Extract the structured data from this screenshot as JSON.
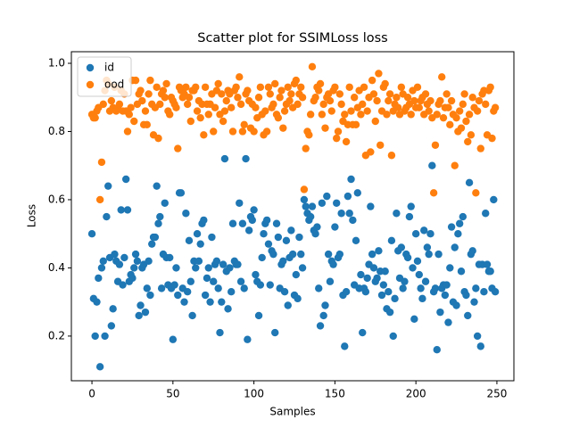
{
  "chart_data": {
    "type": "scatter",
    "title": "Scatter plot for SSIMLoss loss",
    "x_label": "Samples",
    "y_label": "Loss",
    "x": [
      0,
      1,
      2,
      3,
      4,
      5,
      6,
      7,
      8,
      9,
      10,
      11,
      12,
      13,
      14,
      15,
      16,
      17,
      18,
      19,
      20,
      21,
      22,
      23,
      24,
      25,
      26,
      27,
      28,
      29,
      30,
      31,
      32,
      33,
      34,
      35,
      36,
      37,
      38,
      39,
      40,
      41,
      42,
      43,
      44,
      45,
      46,
      47,
      48,
      49,
      50,
      51,
      52,
      53,
      54,
      55,
      56,
      57,
      58,
      59,
      60,
      61,
      62,
      63,
      64,
      65,
      66,
      67,
      68,
      69,
      70,
      71,
      72,
      73,
      74,
      75,
      76,
      77,
      78,
      79,
      80,
      81,
      82,
      83,
      84,
      85,
      86,
      87,
      88,
      89,
      90,
      91,
      92,
      93,
      94,
      95,
      96,
      97,
      98,
      99,
      100,
      101,
      102,
      103,
      104,
      105,
      106,
      107,
      108,
      109,
      110,
      111,
      112,
      113,
      114,
      115,
      116,
      117,
      118,
      119,
      120,
      121,
      122,
      123,
      124,
      125,
      126,
      127,
      128,
      129,
      130,
      131,
      132,
      133,
      134,
      135,
      136,
      137,
      138,
      139,
      140,
      141,
      142,
      143,
      144,
      145,
      146,
      147,
      148,
      149,
      150,
      151,
      152,
      153,
      154,
      155,
      156,
      157,
      158,
      159,
      160,
      161,
      162,
      163,
      164,
      165,
      166,
      167,
      168,
      169,
      170,
      171,
      172,
      173,
      174,
      175,
      176,
      177,
      178,
      179,
      180,
      181,
      182,
      183,
      184,
      185,
      186,
      187,
      188,
      189,
      190,
      191,
      192,
      193,
      194,
      195,
      196,
      197,
      198,
      199,
      200,
      201,
      202,
      203,
      204,
      205,
      206,
      207,
      208,
      209,
      210,
      211,
      212,
      213,
      214,
      215,
      216,
      217,
      218,
      219,
      220,
      221,
      222,
      223,
      224,
      225,
      226,
      227,
      228,
      229,
      230,
      231,
      232,
      233,
      234,
      235,
      236,
      237,
      238,
      239,
      240,
      241,
      242,
      243,
      244,
      245,
      246,
      247,
      248,
      249
    ],
    "series": [
      {
        "name": "id",
        "color": "#1f77b4",
        "values": [
          0.5,
          0.31,
          0.2,
          0.3,
          0.37,
          0.11,
          0.4,
          0.42,
          0.2,
          0.55,
          0.64,
          0.43,
          0.23,
          0.28,
          0.44,
          0.42,
          0.36,
          0.41,
          0.57,
          0.35,
          0.43,
          0.66,
          0.57,
          0.36,
          0.38,
          0.37,
          0.4,
          0.44,
          0.42,
          0.26,
          0.29,
          0.4,
          0.41,
          0.27,
          0.34,
          0.42,
          0.32,
          0.47,
          0.49,
          0.49,
          0.64,
          0.53,
          0.55,
          0.34,
          0.44,
          0.59,
          0.43,
          0.35,
          0.43,
          0.34,
          0.19,
          0.35,
          0.4,
          0.32,
          0.62,
          0.62,
          0.34,
          0.3,
          0.56,
          0.33,
          0.48,
          0.36,
          0.26,
          0.42,
          0.4,
          0.5,
          0.42,
          0.47,
          0.53,
          0.54,
          0.32,
          0.37,
          0.4,
          0.3,
          0.49,
          0.36,
          0.41,
          0.42,
          0.34,
          0.21,
          0.3,
          0.41,
          0.72,
          0.39,
          0.28,
          0.4,
          0.33,
          0.53,
          0.42,
          0.41,
          0.41,
          0.59,
          0.36,
          0.53,
          0.34,
          0.72,
          0.19,
          0.51,
          0.55,
          0.54,
          0.57,
          0.38,
          0.36,
          0.26,
          0.35,
          0.43,
          0.5,
          0.53,
          0.54,
          0.47,
          0.35,
          0.45,
          0.44,
          0.21,
          0.53,
          0.49,
          0.34,
          0.41,
          0.42,
          0.33,
          0.48,
          0.29,
          0.43,
          0.51,
          0.44,
          0.32,
          0.38,
          0.31,
          0.49,
          0.44,
          0.4,
          0.6,
          0.58,
          0.56,
          0.54,
          0.55,
          0.58,
          0.51,
          0.5,
          0.52,
          0.34,
          0.23,
          0.59,
          0.26,
          0.29,
          0.61,
          0.44,
          0.36,
          0.42,
          0.41,
          0.52,
          0.59,
          0.43,
          0.44,
          0.56,
          0.32,
          0.17,
          0.33,
          0.61,
          0.56,
          0.66,
          0.54,
          0.35,
          0.48,
          0.62,
          0.34,
          0.38,
          0.21,
          0.34,
          0.33,
          0.37,
          0.41,
          0.58,
          0.44,
          0.4,
          0.36,
          0.37,
          0.45,
          0.39,
          0.32,
          0.35,
          0.39,
          0.28,
          0.33,
          0.27,
          0.48,
          0.2,
          0.31,
          0.56,
          0.45,
          0.37,
          0.46,
          0.34,
          0.36,
          0.44,
          0.43,
          0.55,
          0.58,
          0.4,
          0.25,
          0.5,
          0.42,
          0.38,
          0.34,
          0.31,
          0.51,
          0.36,
          0.46,
          0.44,
          0.5,
          0.7,
          0.33,
          0.34,
          0.16,
          0.44,
          0.27,
          0.34,
          0.35,
          0.32,
          0.35,
          0.24,
          0.4,
          0.52,
          0.3,
          0.46,
          0.29,
          0.5,
          0.53,
          0.39,
          0.55,
          0.33,
          0.32,
          0.26,
          0.65,
          0.44,
          0.45,
          0.3,
          0.34,
          0.2,
          0.41,
          0.17,
          0.41,
          0.33,
          0.56,
          0.41,
          0.39,
          0.39,
          0.34,
          0.6,
          0.33
        ]
      },
      {
        "name": "ood",
        "color": "#ff7f0e",
        "values": [
          0.85,
          0.84,
          0.84,
          0.86,
          0.87,
          0.6,
          0.71,
          0.88,
          0.92,
          0.95,
          0.94,
          0.86,
          0.89,
          0.87,
          0.93,
          0.86,
          0.87,
          0.88,
          0.92,
          0.86,
          0.91,
          0.86,
          0.8,
          0.85,
          0.87,
          0.95,
          0.83,
          0.95,
          0.88,
          0.91,
          0.92,
          0.89,
          0.82,
          0.86,
          0.82,
          0.91,
          0.95,
          0.88,
          0.79,
          0.87,
          0.93,
          0.78,
          0.88,
          0.91,
          0.92,
          0.9,
          0.94,
          0.86,
          0.85,
          0.9,
          0.89,
          0.88,
          0.87,
          0.75,
          0.93,
          0.92,
          0.9,
          0.91,
          0.93,
          0.88,
          0.9,
          0.83,
          0.92,
          0.92,
          0.93,
          0.86,
          0.89,
          0.84,
          0.88,
          0.79,
          0.93,
          0.88,
          0.85,
          0.88,
          0.91,
          0.8,
          0.87,
          0.92,
          0.94,
          0.85,
          0.91,
          0.83,
          0.86,
          0.89,
          0.92,
          0.91,
          0.87,
          0.8,
          0.92,
          0.93,
          0.9,
          0.96,
          0.88,
          0.8,
          0.82,
          0.91,
          0.92,
          0.89,
          0.81,
          0.88,
          0.8,
          0.87,
          0.84,
          0.9,
          0.93,
          0.85,
          0.79,
          0.86,
          0.8,
          0.93,
          0.91,
          0.87,
          0.88,
          0.94,
          0.85,
          0.84,
          0.9,
          0.92,
          0.81,
          0.86,
          0.88,
          0.93,
          0.89,
          0.91,
          0.87,
          0.94,
          0.95,
          0.88,
          0.91,
          0.93,
          0.9,
          0.63,
          0.75,
          0.8,
          0.79,
          0.85,
          0.99,
          0.89,
          0.9,
          0.93,
          0.92,
          0.94,
          0.85,
          0.88,
          0.81,
          0.9,
          0.91,
          0.89,
          0.86,
          0.92,
          0.93,
          0.78,
          0.8,
          0.91,
          0.88,
          0.83,
          0.85,
          0.77,
          0.82,
          0.93,
          0.86,
          0.82,
          0.9,
          0.82,
          0.87,
          0.92,
          0.85,
          0.88,
          0.93,
          0.73,
          0.86,
          0.9,
          0.74,
          0.95,
          0.91,
          0.83,
          0.89,
          0.97,
          0.76,
          0.86,
          0.93,
          0.94,
          0.85,
          0.89,
          0.91,
          0.73,
          0.86,
          0.88,
          0.9,
          0.87,
          0.85,
          0.93,
          0.91,
          0.86,
          0.87,
          0.9,
          0.88,
          0.85,
          0.92,
          0.89,
          0.87,
          0.93,
          0.87,
          0.89,
          0.9,
          0.85,
          0.91,
          0.88,
          0.86,
          0.89,
          0.84,
          0.62,
          0.76,
          0.85,
          0.88,
          0.89,
          0.96,
          0.84,
          0.87,
          0.91,
          0.87,
          0.82,
          0.89,
          0.85,
          0.7,
          0.84,
          0.8,
          0.86,
          0.81,
          0.88,
          0.91,
          0.83,
          0.77,
          0.85,
          0.79,
          0.9,
          0.87,
          0.62,
          0.86,
          0.89,
          0.75,
          0.91,
          0.92,
          0.88,
          0.79,
          0.92,
          0.93,
          0.78,
          0.86,
          0.87
        ]
      }
    ],
    "xlim": [
      -12.7,
      260.5
    ],
    "ylim": [
      0.069,
      1.034
    ],
    "xticks": [
      0,
      50,
      100,
      150,
      200,
      250
    ],
    "yticks": [
      0.2,
      0.4,
      0.6,
      0.8,
      {
        "value": 1,
        "label": "1.0"
      }
    ],
    "legend": "upper left"
  }
}
